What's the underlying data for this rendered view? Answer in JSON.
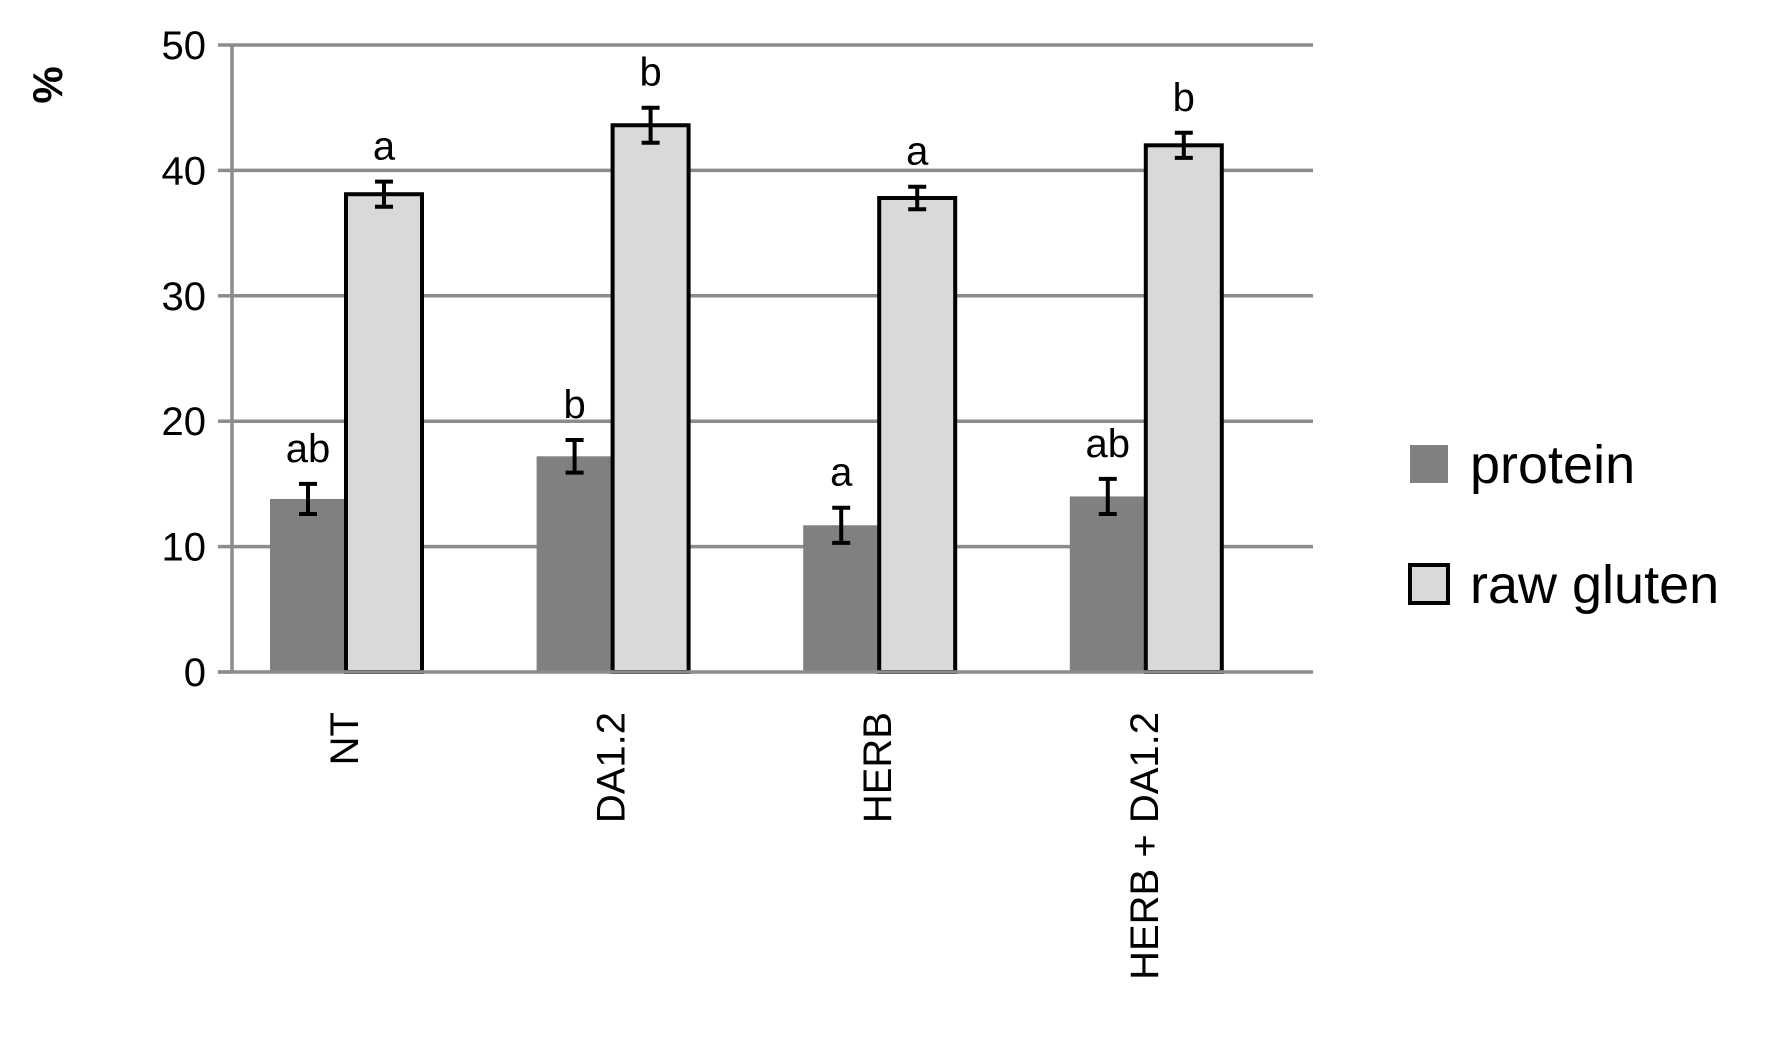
{
  "chart_data": {
    "type": "bar",
    "title": "",
    "xlabel": "",
    "ylabel": "%",
    "ylim": [
      0,
      50
    ],
    "yticks": [
      0,
      10,
      20,
      30,
      40,
      50
    ],
    "grid": true,
    "legend_position": "right",
    "categories": [
      "NT",
      "DA1.2",
      "HERB",
      "HERB + DA1.2"
    ],
    "series": [
      {
        "name": "protein",
        "color": "#808080",
        "values": [
          13.8,
          17.2,
          11.7,
          14.0
        ],
        "errors": [
          1.2,
          1.3,
          1.4,
          1.4
        ],
        "significance": [
          "ab",
          "b",
          "a",
          "ab"
        ]
      },
      {
        "name": "raw gluten",
        "color": "#d9d9d9",
        "values": [
          38.1,
          43.6,
          37.8,
          42.0
        ],
        "errors": [
          1.0,
          1.4,
          0.9,
          1.0
        ],
        "significance": [
          "a",
          "b",
          "a",
          "b"
        ]
      }
    ]
  }
}
